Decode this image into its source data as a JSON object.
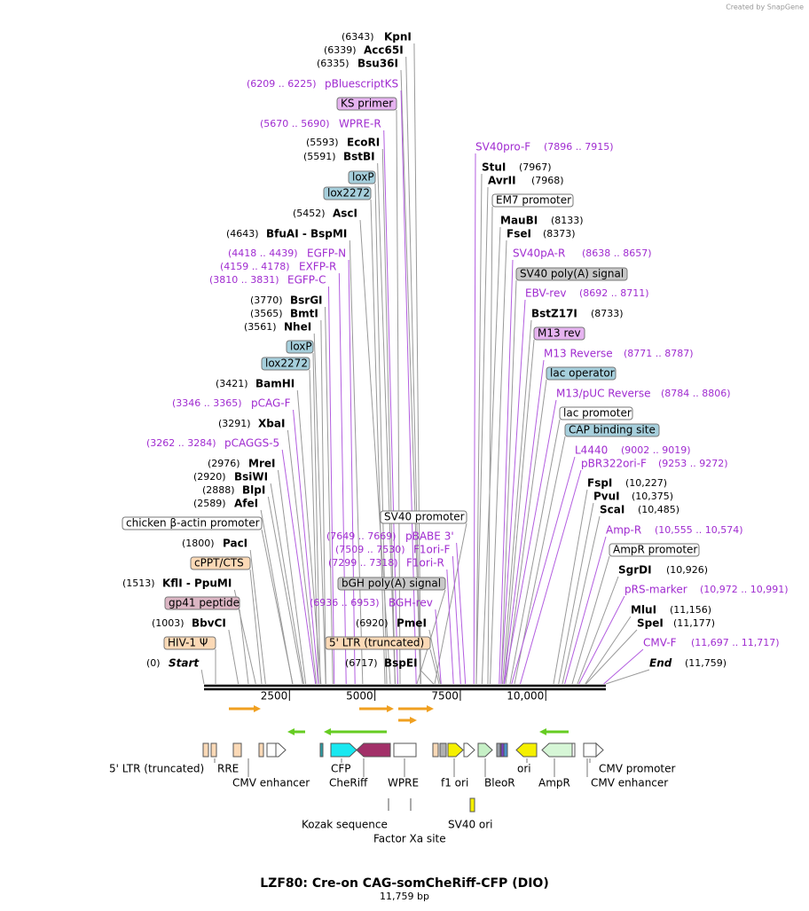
{
  "watermark": "Created by SnapGene",
  "xlim": [
    0,
    11759
  ],
  "xticks": [
    2500,
    5000,
    7500,
    {
      "value": 10000,
      "label": "10,000"
    }
  ],
  "labels": [
    {
      "position": "(6343)",
      "enzyme": "KpnI"
    },
    {
      "position": "(6339)",
      "enzyme": "Acc65I"
    },
    {
      "position": "(6335)",
      "enzyme": "Bsu36I"
    },
    {
      "position": "(6209 .. 6225)",
      "primer": "pBluescriptKS"
    },
    {
      "feature": "KS primer",
      "fill": "#e6b3f0"
    },
    {
      "position": "(5670 .. 5690)",
      "primer": "WPRE-R"
    },
    {
      "position": "(5593)",
      "enzyme": "EcoRI"
    },
    {
      "position": "(5591)",
      "enzyme": "BstBI"
    },
    {
      "feature": "loxP",
      "fill": "#a6cfdc"
    },
    {
      "feature": "lox2272",
      "fill": "#a6cfdc"
    },
    {
      "position": "(5452)",
      "enzyme": "AscI"
    },
    {
      "position": "(4643)",
      "enzyme": "BfuAI - BspMI"
    },
    {
      "position": "(4418 .. 4439)",
      "primer": "EGFP-N"
    },
    {
      "position": "(4159 .. 4178)",
      "primer": "EXFP-R"
    },
    {
      "position": "(3810 .. 3831)",
      "primer": "EGFP-C"
    },
    {
      "position": "(3770)",
      "enzyme": "BsrGI"
    },
    {
      "position": "(3565)",
      "enzyme": "BmtI"
    },
    {
      "position": "(3561)",
      "enzyme": "NheI"
    },
    {
      "feature": "loxP",
      "fill": "#a6cfdc"
    },
    {
      "feature": "lox2272",
      "fill": "#a6cfdc"
    },
    {
      "position": "(3421)",
      "enzyme": "BamHI"
    },
    {
      "position": "(3346 .. 3365)",
      "primer": "pCAG-F"
    },
    {
      "position": "(3291)",
      "enzyme": "XbaI"
    },
    {
      "position": "(3262 .. 3284)",
      "primer": "pCAGGS-5"
    },
    {
      "position": "(2976)",
      "enzyme": "MreI"
    },
    {
      "position": "(2920)",
      "enzyme": "BsiWI"
    },
    {
      "position": "(2888)",
      "enzyme": "BlpI"
    },
    {
      "position": "(2589)",
      "enzyme": "AfeI"
    },
    {
      "feature": "chicken β-actin promoter",
      "fill": "#ffffff"
    },
    {
      "position": "(1800)",
      "enzyme": "PacI"
    },
    {
      "feature": "cPPT/CTS",
      "fill": "#fbd9b6"
    },
    {
      "position": "(1513)",
      "enzyme": "KflI - PpuMI"
    },
    {
      "feature": "gp41 peptide",
      "fill": "#dcb6c4"
    },
    {
      "position": "(1003)",
      "enzyme": "BbvCI"
    },
    {
      "feature": "HIV-1 Ψ",
      "fill": "#fbd9b6"
    },
    {
      "position": "(0)",
      "terminus": "Start"
    },
    {
      "feature": "SV40 promoter",
      "fill": "#ffffff"
    },
    {
      "position": "(7649 .. 7669)",
      "primer": "pBABE 3'"
    },
    {
      "position": "(7509 .. 7530)",
      "primer": "F1ori-F"
    },
    {
      "position": "(7299 .. 7318)",
      "primer": "F1ori-R"
    },
    {
      "feature": "bGH poly(A) signal",
      "fill": "#c8c8c8"
    },
    {
      "position": "(6936 .. 6953)",
      "primer": "BGH-rev"
    },
    {
      "position": "(6920)",
      "enzyme": "PmeI"
    },
    {
      "feature": "5' LTR (truncated)",
      "fill": "#fbd9b6"
    },
    {
      "position": "(6717)",
      "enzyme": "BspEI"
    },
    {
      "primer": "SV40pro-F",
      "position": "(7896 .. 7915)"
    },
    {
      "enzyme": "StuI",
      "position": "(7967)"
    },
    {
      "enzyme": "AvrII",
      "position": "(7968)"
    },
    {
      "feature": "EM7 promoter",
      "fill": "#ffffff"
    },
    {
      "enzyme": "MauBI",
      "position": "(8133)"
    },
    {
      "enzyme": "FseI",
      "position": "(8373)"
    },
    {
      "primer": "SV40pA-R",
      "position": "(8638 .. 8657)"
    },
    {
      "feature": "SV40 poly(A) signal",
      "fill": "#c8c8c8"
    },
    {
      "primer": "EBV-rev",
      "position": "(8692 .. 8711)"
    },
    {
      "enzyme": "BstZ17I",
      "position": "(8733)"
    },
    {
      "feature": "M13 rev",
      "fill": "#e6b3f0"
    },
    {
      "primer": "M13 Reverse",
      "position": "(8771 .. 8787)"
    },
    {
      "feature": "lac operator",
      "fill": "#a6cfdc"
    },
    {
      "primer": "M13/pUC Reverse",
      "position": "(8784 .. 8806)"
    },
    {
      "feature": "lac promoter",
      "fill": "#ffffff"
    },
    {
      "feature": "CAP binding site",
      "fill": "#a6cfdc"
    },
    {
      "primer": "L4440",
      "position": "(9002 .. 9019)"
    },
    {
      "primer": "pBR322ori-F",
      "position": "(9253 .. 9272)"
    },
    {
      "enzyme": "FspI",
      "position": "(10,227)"
    },
    {
      "enzyme": "PvuI",
      "position": "(10,375)"
    },
    {
      "enzyme": "ScaI",
      "position": "(10,485)"
    },
    {
      "primer": "Amp-R",
      "position": "(10,555 .. 10,574)"
    },
    {
      "feature": "AmpR promoter",
      "fill": "#ffffff"
    },
    {
      "enzyme": "SgrDI",
      "position": "(10,926)"
    },
    {
      "primer": "pRS-marker",
      "position": "(10,972 .. 10,991)"
    },
    {
      "enzyme": "MluI",
      "position": "(11,156)"
    },
    {
      "enzyme": "SpeI",
      "position": "(11,177)"
    },
    {
      "primer": "CMV-F",
      "position": "(11,697 .. 11,717)"
    },
    {
      "terminus": "End",
      "position": "(11,759)"
    }
  ],
  "track_labels": [
    "5' LTR (truncated)",
    "RRE",
    "CFP",
    "ori",
    "CMV promoter",
    "CMV enhancer",
    "CheRiff",
    "WPRE",
    "f1 ori",
    "BleoR",
    "AmpR",
    "CMV enhancer",
    "Kozak sequence",
    "SV40 ori",
    "Factor Xa site"
  ],
  "title": "LZF80: Cre-on CAG-somCheRiff-CFP (DIO)",
  "length": "11,759 bp"
}
